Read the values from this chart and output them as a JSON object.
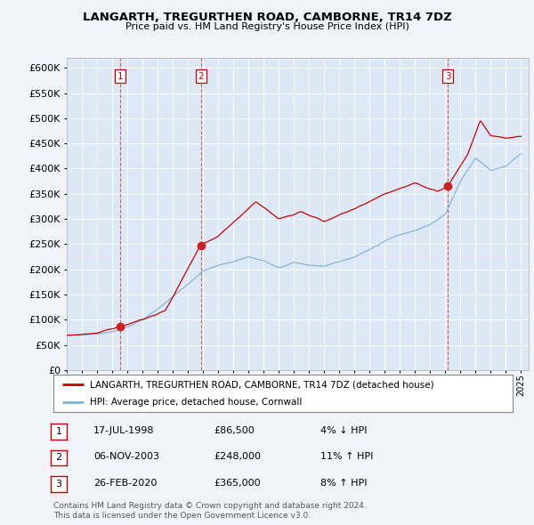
{
  "title": "LANGARTH, TREGURTHEN ROAD, CAMBORNE, TR14 7DZ",
  "subtitle": "Price paid vs. HM Land Registry's House Price Index (HPI)",
  "legend_label_red": "LANGARTH, TREGURTHEN ROAD, CAMBORNE, TR14 7DZ (detached house)",
  "legend_label_blue": "HPI: Average price, detached house, Cornwall",
  "transactions": [
    {
      "num": 1,
      "date": "17-JUL-1998",
      "price": 86500,
      "pct": "4%",
      "dir": "↓"
    },
    {
      "num": 2,
      "date": "06-NOV-2003",
      "price": 248000,
      "pct": "11%",
      "dir": "↑"
    },
    {
      "num": 3,
      "date": "26-FEB-2020",
      "price": 365000,
      "pct": "8%",
      "dir": "↑"
    }
  ],
  "footnote1": "Contains HM Land Registry data © Crown copyright and database right 2024.",
  "footnote2": "This data is licensed under the Open Government Licence v3.0.",
  "fig_bg_color": "#f0f4f8",
  "plot_bg_color": "#dce8f5",
  "red_color": "#cc0000",
  "blue_color": "#7ab3d4",
  "ylim": [
    0,
    620000
  ],
  "yticks": [
    0,
    50000,
    100000,
    150000,
    200000,
    250000,
    300000,
    350000,
    400000,
    450000,
    500000,
    550000,
    600000
  ],
  "xlim_start": 1995.0,
  "xlim_end": 2025.5,
  "transaction_years": [
    1998.54,
    2003.85,
    2020.16
  ],
  "transaction_prices": [
    86500,
    248000,
    365000
  ],
  "hpi_key_years": [
    1995,
    1996,
    1997,
    1998,
    1999,
    2000,
    2001,
    2002,
    2003,
    2004,
    2005,
    2006,
    2007,
    2008,
    2009,
    2010,
    2011,
    2012,
    2013,
    2014,
    2015,
    2016,
    2017,
    2018,
    2019,
    2020,
    2021,
    2022,
    2023,
    2024,
    2025
  ],
  "hpi_key_vals": [
    68000,
    70000,
    73000,
    78000,
    88000,
    103000,
    123000,
    148000,
    173000,
    200000,
    210000,
    218000,
    228000,
    220000,
    205000,
    215000,
    210000,
    208000,
    215000,
    225000,
    240000,
    256000,
    270000,
    278000,
    290000,
    310000,
    375000,
    420000,
    395000,
    405000,
    430000
  ]
}
